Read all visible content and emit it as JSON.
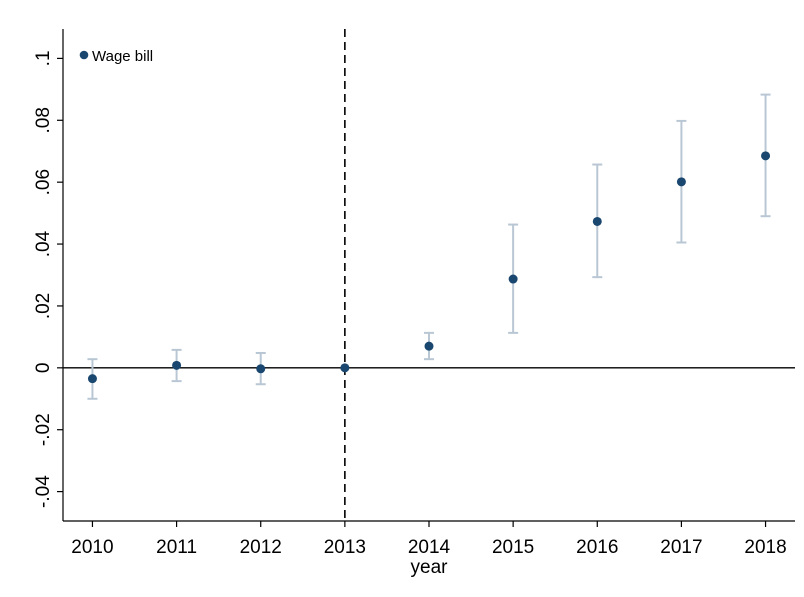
{
  "chart_data": {
    "type": "scatter",
    "x": [
      2010,
      2011,
      2012,
      2013,
      2014,
      2015,
      2016,
      2017,
      2018
    ],
    "series": [
      {
        "name": "Wage bill",
        "values": [
          -0.0035,
          0.0008,
          -0.0003,
          0.0,
          0.007,
          0.0287,
          0.0473,
          0.0601,
          0.0685
        ],
        "ci_low": [
          -0.01,
          -0.0043,
          -0.0053,
          0.0,
          0.0028,
          0.0113,
          0.0293,
          0.0405,
          0.049
        ],
        "ci_high": [
          0.0028,
          0.0058,
          0.0048,
          0.0,
          0.0113,
          0.0463,
          0.0657,
          0.0798,
          0.0883
        ],
        "color": "#1a476f",
        "ci_color": "#b9c7d4"
      }
    ],
    "xlabel": "year",
    "ylabel": "",
    "x_ticks": [
      "2010",
      "2011",
      "2012",
      "2013",
      "2014",
      "2015",
      "2016",
      "2017",
      "2018"
    ],
    "y_ticks": [
      -0.04,
      -0.02,
      0,
      0.02,
      0.04,
      0.06,
      0.08,
      0.1
    ],
    "y_tick_labels": [
      "-.04",
      "-.02",
      "0",
      ".02",
      ".04",
      ".06",
      ".08",
      ".1"
    ],
    "xlim": [
      2009.65,
      2018.35
    ],
    "ylim": [
      -0.0495,
      0.1095
    ],
    "reference_lines": {
      "vertical_x": 2013,
      "horizontal_y": 0
    },
    "legend": {
      "position": "top-left",
      "entries": [
        "Wage bill"
      ]
    },
    "grid": false
  }
}
